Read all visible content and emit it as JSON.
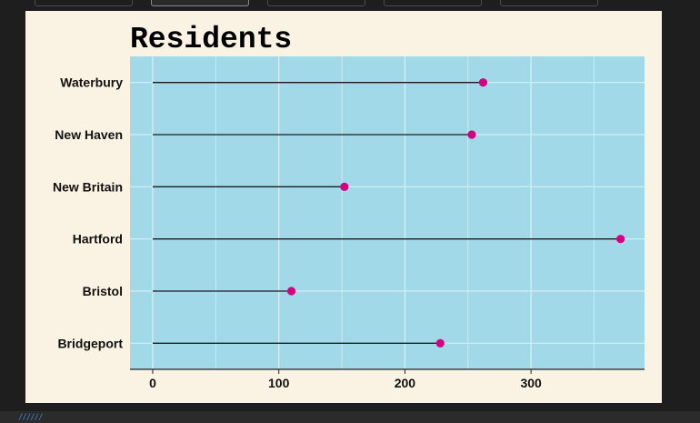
{
  "chart_data": {
    "type": "lollipop",
    "title": "Residents",
    "xlabel": "",
    "ylabel": "",
    "categories": [
      "Waterbury",
      "New Haven",
      "New Britain",
      "Hartford",
      "Bristol",
      "Bridgeport"
    ],
    "values": [
      262,
      253,
      152,
      371,
      110,
      228
    ],
    "xlim": [
      -18,
      390
    ],
    "xticks": [
      0,
      100,
      200,
      300
    ],
    "grid": true,
    "colors": {
      "panel": "#a2d9e8",
      "point": "#d4007f",
      "stem": "#1a1a1a",
      "grid": "#d6eef5",
      "background": "#faf3e3"
    }
  }
}
